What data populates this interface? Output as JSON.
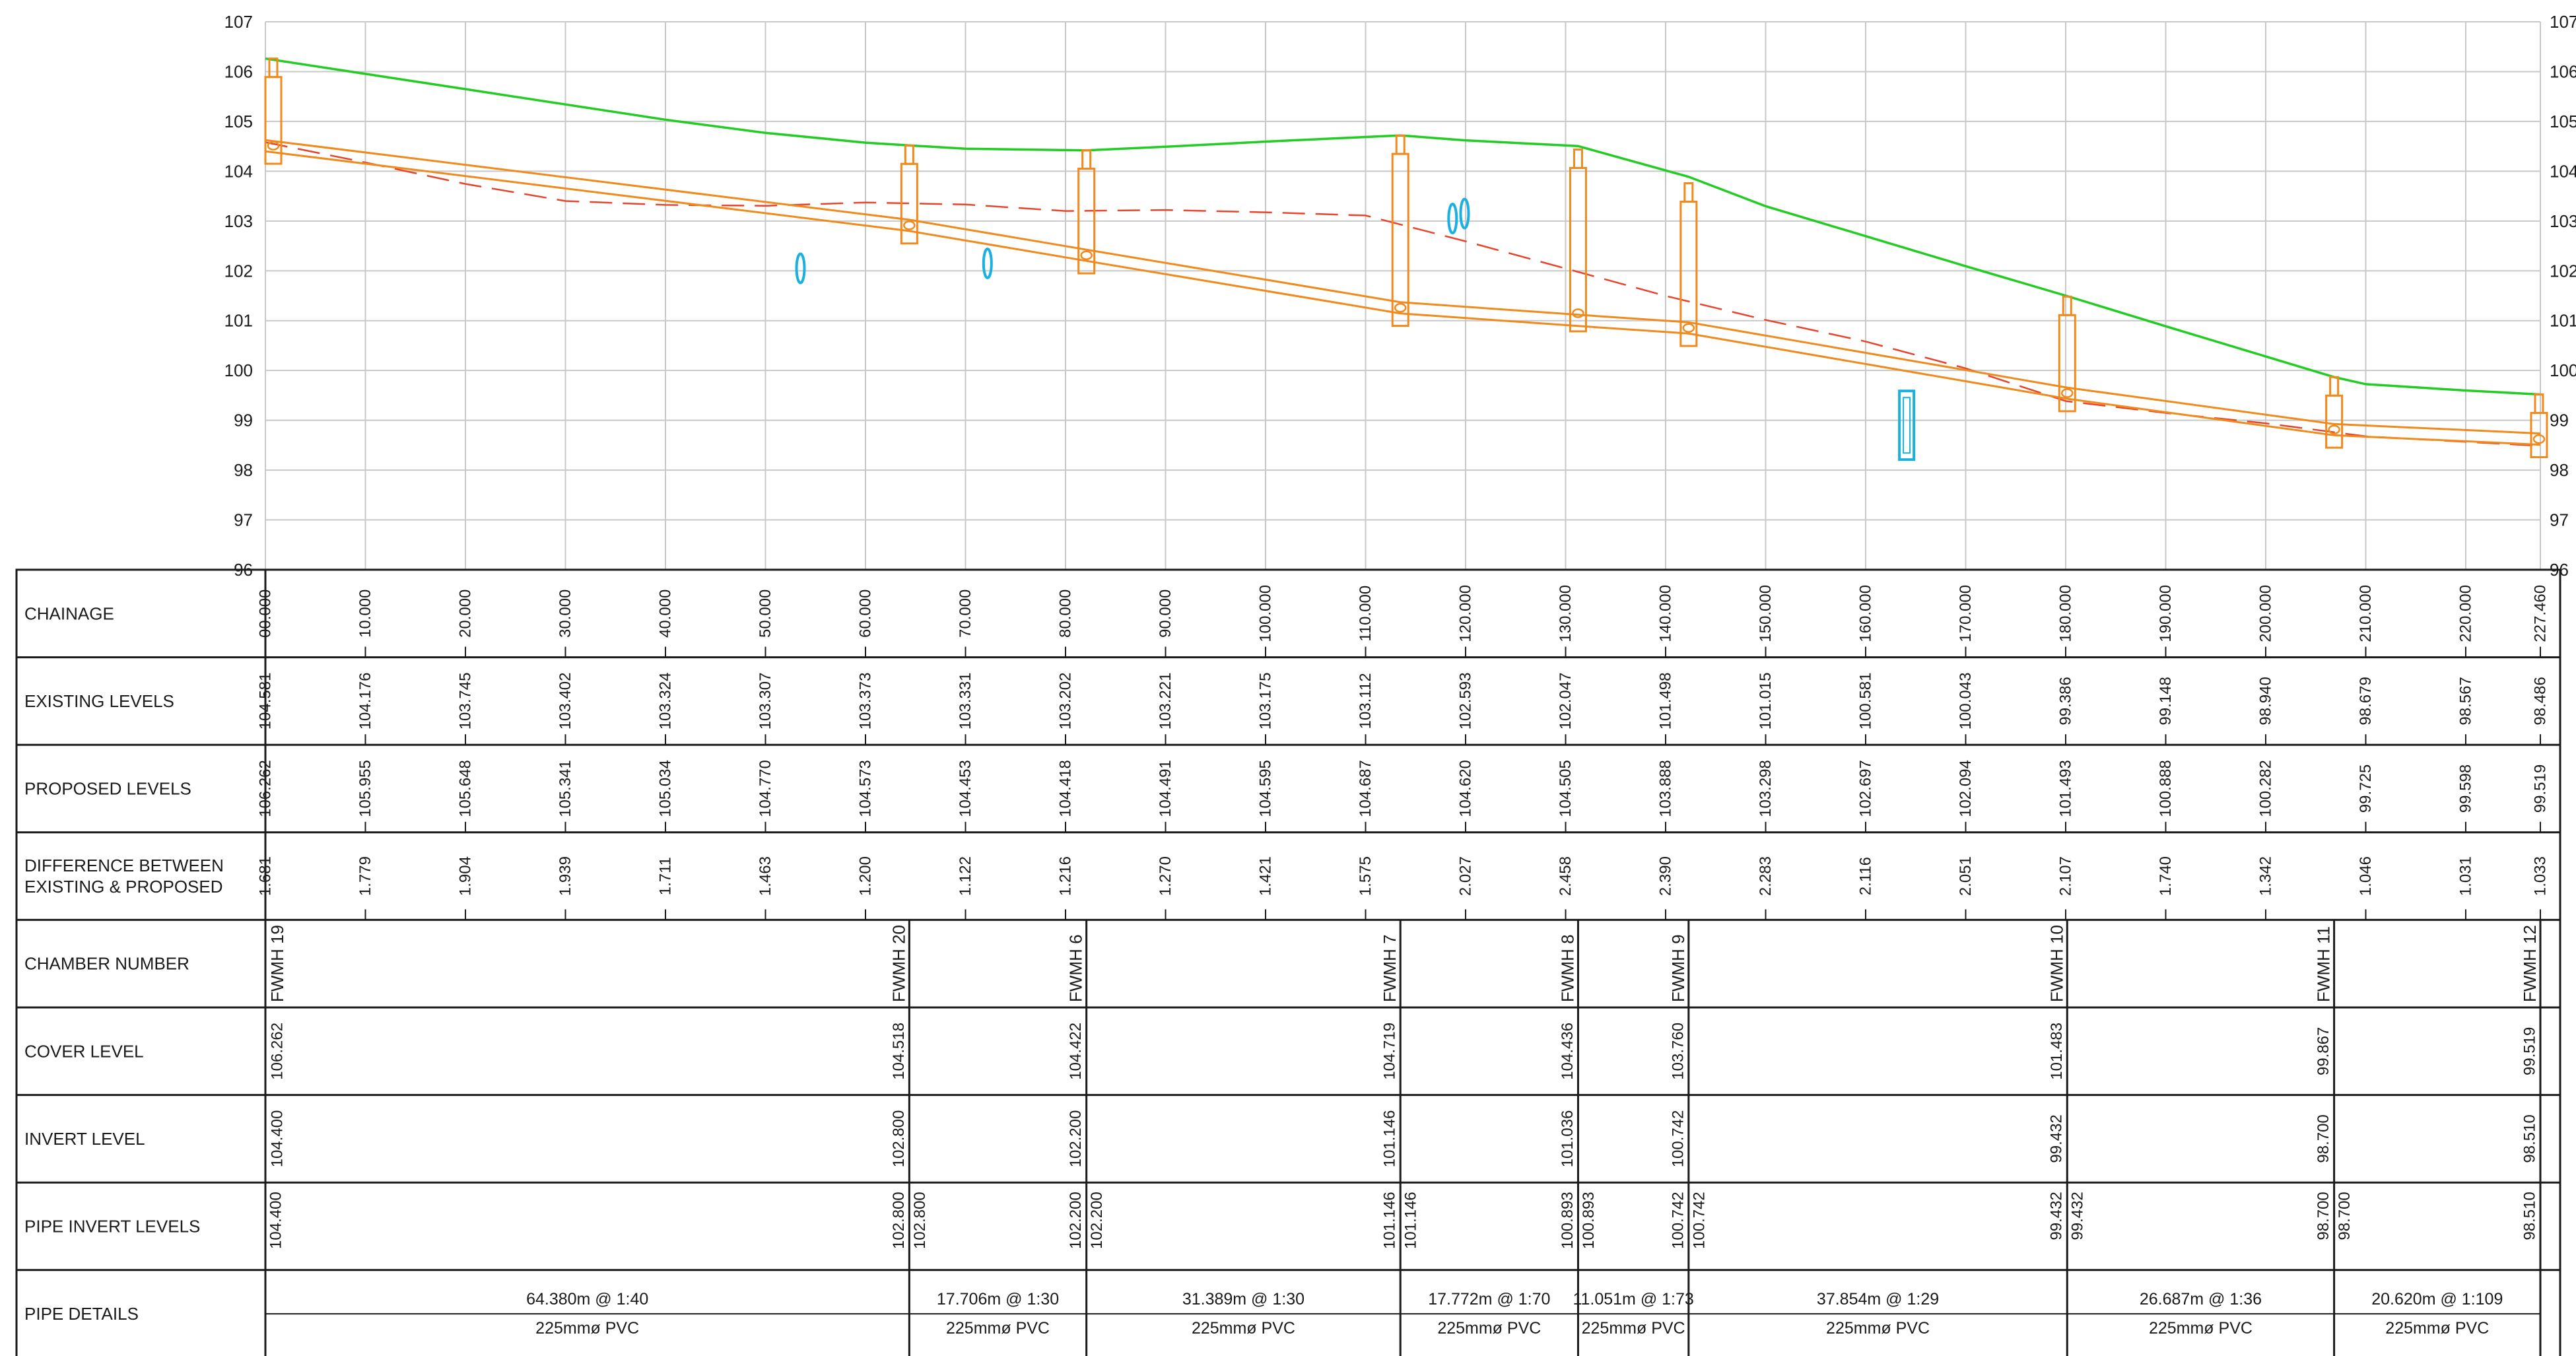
{
  "profile": {
    "y_axis": {
      "min": 96,
      "max": 107,
      "ticks": [
        96,
        97,
        98,
        99,
        100,
        101,
        102,
        103,
        104,
        105,
        106,
        107
      ]
    },
    "x_axis": {
      "min": 0,
      "max": 227.46,
      "grid": [
        0,
        10,
        20,
        30,
        40,
        50,
        60,
        70,
        80,
        90,
        100,
        110,
        120,
        130,
        140,
        150,
        160,
        170,
        180,
        190,
        200,
        210,
        220
      ]
    },
    "colors": {
      "grid": "#c8c8c8",
      "existing": "#e8442c",
      "proposed": "#22cc22",
      "pipe": "#f08a1c",
      "service": "#1ab0e0",
      "table": "#1a1a1a"
    },
    "proposed_line": [
      [
        0,
        106.262
      ],
      [
        10,
        105.955
      ],
      [
        20,
        105.648
      ],
      [
        30,
        105.341
      ],
      [
        40,
        105.034
      ],
      [
        50,
        104.77
      ],
      [
        60,
        104.573
      ],
      [
        64.38,
        104.518
      ],
      [
        70,
        104.453
      ],
      [
        82.09,
        104.418
      ],
      [
        90,
        104.491
      ],
      [
        100,
        104.595
      ],
      [
        110,
        104.687
      ],
      [
        113.48,
        104.719
      ],
      [
        120,
        104.62
      ],
      [
        131.25,
        104.505
      ],
      [
        142.3,
        103.888
      ],
      [
        150,
        103.298
      ],
      [
        160,
        102.697
      ],
      [
        170,
        102.094
      ],
      [
        180.15,
        101.493
      ],
      [
        190,
        100.888
      ],
      [
        200,
        100.282
      ],
      [
        206.84,
        99.867
      ],
      [
        210,
        99.725
      ],
      [
        220,
        99.598
      ],
      [
        227.46,
        99.519
      ]
    ],
    "existing_line": [
      [
        0,
        104.581
      ],
      [
        10,
        104.176
      ],
      [
        20,
        103.745
      ],
      [
        30,
        103.402
      ],
      [
        40,
        103.324
      ],
      [
        50,
        103.307
      ],
      [
        60,
        103.373
      ],
      [
        70,
        103.331
      ],
      [
        80,
        103.202
      ],
      [
        90,
        103.221
      ],
      [
        100,
        103.175
      ],
      [
        110,
        103.112
      ],
      [
        120,
        102.593
      ],
      [
        130,
        102.047
      ],
      [
        140,
        101.498
      ],
      [
        150,
        101.015
      ],
      [
        160,
        100.581
      ],
      [
        170,
        100.043
      ],
      [
        180,
        99.386
      ],
      [
        190,
        99.148
      ],
      [
        200,
        98.94
      ],
      [
        210,
        98.679
      ],
      [
        220,
        98.567
      ],
      [
        227.46,
        98.486
      ]
    ],
    "pipe_invert_line": [
      [
        0,
        104.4
      ],
      [
        64.38,
        102.8
      ],
      [
        82.09,
        102.2
      ],
      [
        113.48,
        101.146
      ],
      [
        131.25,
        100.893
      ],
      [
        142.3,
        100.742
      ],
      [
        180.15,
        99.432
      ],
      [
        206.84,
        98.7
      ],
      [
        227.46,
        98.51
      ]
    ],
    "pipe_diameter_m": 0.225,
    "manholes": [
      {
        "ch": 0,
        "cover": 106.262,
        "invert": 104.4
      },
      {
        "ch": 64.38,
        "cover": 104.518,
        "invert": 102.8
      },
      {
        "ch": 82.09,
        "cover": 104.422,
        "invert": 102.2
      },
      {
        "ch": 113.48,
        "cover": 104.719,
        "invert": 101.146
      },
      {
        "ch": 131.25,
        "cover": 104.436,
        "invert": 101.036
      },
      {
        "ch": 142.3,
        "cover": 103.76,
        "invert": 100.742
      },
      {
        "ch": 180.15,
        "cover": 101.483,
        "invert": 99.432
      },
      {
        "ch": 206.84,
        "cover": 99.867,
        "invert": 98.7
      },
      {
        "ch": 227.46,
        "cover": 99.519,
        "invert": 98.51
      }
    ],
    "services": [
      {
        "ch": 53.5,
        "level": 102.05,
        "kind": "ellipse"
      },
      {
        "ch": 72.2,
        "level": 102.15,
        "kind": "ellipse"
      },
      {
        "ch": 118.7,
        "level": 103.05,
        "kind": "ellipse"
      },
      {
        "ch": 119.9,
        "level": 103.15,
        "kind": "ellipse"
      },
      {
        "ch": 164.1,
        "level": 98.9,
        "kind": "rect"
      }
    ]
  },
  "table": {
    "row_labels": [
      [
        "CHAINAGE"
      ],
      [
        "EXISTING LEVELS"
      ],
      [
        "PROPOSED LEVELS"
      ],
      [
        "DIFFERENCE BETWEEN",
        "EXISTING & PROPOSED"
      ],
      [
        "CHAMBER NUMBER"
      ],
      [
        "COVER LEVEL"
      ],
      [
        "INVERT LEVEL"
      ],
      [
        "PIPE INVERT LEVELS"
      ],
      [
        "PIPE DETAILS"
      ]
    ],
    "stations": [
      {
        "ch": 0,
        "chainage": "00.000",
        "existing": "104.581",
        "proposed": "106.262",
        "difference": "1.681"
      },
      {
        "ch": 10,
        "chainage": "10.000",
        "existing": "104.176",
        "proposed": "105.955",
        "difference": "1.779"
      },
      {
        "ch": 20,
        "chainage": "20.000",
        "existing": "103.745",
        "proposed": "105.648",
        "difference": "1.904"
      },
      {
        "ch": 30,
        "chainage": "30.000",
        "existing": "103.402",
        "proposed": "105.341",
        "difference": "1.939"
      },
      {
        "ch": 40,
        "chainage": "40.000",
        "existing": "103.324",
        "proposed": "105.034",
        "difference": "1.711"
      },
      {
        "ch": 50,
        "chainage": "50.000",
        "existing": "103.307",
        "proposed": "104.770",
        "difference": "1.463"
      },
      {
        "ch": 60,
        "chainage": "60.000",
        "existing": "103.373",
        "proposed": "104.573",
        "difference": "1.200"
      },
      {
        "ch": 70,
        "chainage": "70.000",
        "existing": "103.331",
        "proposed": "104.453",
        "difference": "1.122"
      },
      {
        "ch": 80,
        "chainage": "80.000",
        "existing": "103.202",
        "proposed": "104.418",
        "difference": "1.216"
      },
      {
        "ch": 90,
        "chainage": "90.000",
        "existing": "103.221",
        "proposed": "104.491",
        "difference": "1.270"
      },
      {
        "ch": 100,
        "chainage": "100.000",
        "existing": "103.175",
        "proposed": "104.595",
        "difference": "1.421"
      },
      {
        "ch": 110,
        "chainage": "110.000",
        "existing": "103.112",
        "proposed": "104.687",
        "difference": "1.575"
      },
      {
        "ch": 120,
        "chainage": "120.000",
        "existing": "102.593",
        "proposed": "104.620",
        "difference": "2.027"
      },
      {
        "ch": 130,
        "chainage": "130.000",
        "existing": "102.047",
        "proposed": "104.505",
        "difference": "2.458"
      },
      {
        "ch": 140,
        "chainage": "140.000",
        "existing": "101.498",
        "proposed": "103.888",
        "difference": "2.390"
      },
      {
        "ch": 150,
        "chainage": "150.000",
        "existing": "101.015",
        "proposed": "103.298",
        "difference": "2.283"
      },
      {
        "ch": 160,
        "chainage": "160.000",
        "existing": "100.581",
        "proposed": "102.697",
        "difference": "2.116"
      },
      {
        "ch": 170,
        "chainage": "170.000",
        "existing": "100.043",
        "proposed": "102.094",
        "difference": "2.051"
      },
      {
        "ch": 180,
        "chainage": "180.000",
        "existing": "99.386",
        "proposed": "101.493",
        "difference": "2.107"
      },
      {
        "ch": 190,
        "chainage": "190.000",
        "existing": "99.148",
        "proposed": "100.888",
        "difference": "1.740"
      },
      {
        "ch": 200,
        "chainage": "200.000",
        "existing": "98.940",
        "proposed": "100.282",
        "difference": "1.342"
      },
      {
        "ch": 210,
        "chainage": "210.000",
        "existing": "98.679",
        "proposed": "99.725",
        "difference": "1.046"
      },
      {
        "ch": 220,
        "chainage": "220.000",
        "existing": "98.567",
        "proposed": "99.598",
        "difference": "1.031"
      },
      {
        "ch": 227.46,
        "chainage": "227.460",
        "existing": "98.486",
        "proposed": "99.519",
        "difference": "1.033"
      }
    ],
    "chambers": [
      {
        "ch": 0,
        "name": "FWMH 19",
        "cover": "106.262",
        "invert": "104.400",
        "pipe_in": "",
        "pipe_out": "104.400"
      },
      {
        "ch": 64.38,
        "name": "FWMH 20",
        "cover": "104.518",
        "invert": "102.800",
        "pipe_in": "102.800",
        "pipe_out": "102.800"
      },
      {
        "ch": 82.09,
        "name": "FWMH 6",
        "cover": "104.422",
        "invert": "102.200",
        "pipe_in": "102.200",
        "pipe_out": "102.200"
      },
      {
        "ch": 113.48,
        "name": "FWMH 7",
        "cover": "104.719",
        "invert": "101.146",
        "pipe_in": "101.146",
        "pipe_out": "101.146"
      },
      {
        "ch": 131.25,
        "name": "FWMH 8",
        "cover": "104.436",
        "invert": "101.036",
        "pipe_in": "100.893",
        "pipe_out": "100.893"
      },
      {
        "ch": 142.3,
        "name": "FWMH 9",
        "cover": "103.760",
        "invert": "100.742",
        "pipe_in": "100.742",
        "pipe_out": "100.742"
      },
      {
        "ch": 180.15,
        "name": "FWMH 10",
        "cover": "101.483",
        "invert": "99.432",
        "pipe_in": "99.432",
        "pipe_out": "99.432"
      },
      {
        "ch": 206.84,
        "name": "FWMH 11",
        "cover": "99.867",
        "invert": "98.700",
        "pipe_in": "98.700",
        "pipe_out": "98.700"
      },
      {
        "ch": 227.46,
        "name": "FWMH 12",
        "cover": "99.519",
        "invert": "98.510",
        "pipe_in": "98.510",
        "pipe_out": ""
      }
    ],
    "pipes": [
      {
        "from": 0,
        "to": 64.38,
        "length_grade": "64.380m @ 1:40",
        "size": "225mmø  PVC"
      },
      {
        "from": 64.38,
        "to": 82.09,
        "length_grade": "17.706m @ 1:30",
        "size": "225mmø  PVC"
      },
      {
        "from": 82.09,
        "to": 113.48,
        "length_grade": "31.389m @ 1:30",
        "size": "225mmø  PVC"
      },
      {
        "from": 113.48,
        "to": 131.25,
        "length_grade": "17.772m @ 1:70",
        "size": "225mmø  PVC"
      },
      {
        "from": 131.25,
        "to": 142.3,
        "length_grade": "11.051m @ 1:73",
        "size": "225mmø  PVC"
      },
      {
        "from": 142.3,
        "to": 180.15,
        "length_grade": "37.854m @ 1:29",
        "size": "225mmø  PVC"
      },
      {
        "from": 180.15,
        "to": 206.84,
        "length_grade": "26.687m @ 1:36",
        "size": "225mmø  PVC"
      },
      {
        "from": 206.84,
        "to": 227.46,
        "length_grade": "20.620m @ 1:109",
        "size": "225mmø  PVC"
      }
    ]
  }
}
